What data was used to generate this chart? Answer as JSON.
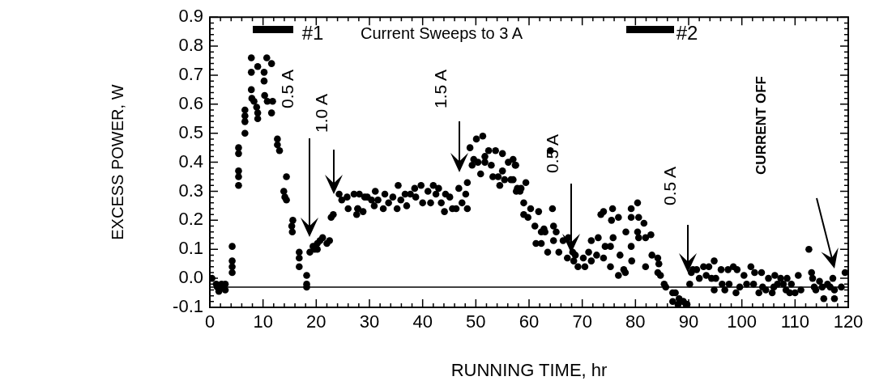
{
  "chart_data": {
    "type": "scatter",
    "xlabel": "RUNNING TIME, hr",
    "ylabel": "EXCESS POWER, W",
    "xlim": [
      0,
      120
    ],
    "xticks": [
      0,
      10,
      20,
      30,
      40,
      50,
      60,
      70,
      80,
      90,
      100,
      110,
      120
    ],
    "ylim": [
      -0.1,
      0.9
    ],
    "yticks": [
      {
        "value": -0.1,
        "label": "-0.1"
      },
      {
        "value": 0,
        "label": "0.0"
      },
      0.1,
      0.2,
      0.3,
      0.4,
      0.5,
      0.6,
      0.7,
      0.8,
      0.9
    ],
    "grid": false,
    "legend": false,
    "marker": "circle",
    "ref_lines": [
      {
        "axis": "y",
        "value": -0.03,
        "color": "#000000"
      }
    ],
    "annotations": [
      "#1",
      "Current Sweeps to 3 A",
      "#2",
      "0.5 A",
      "1.0 A",
      "1.5 A",
      "0.5 A",
      "0.5 A",
      "CURRENT OFF"
    ],
    "series": [
      {
        "color": "#000000",
        "x": [
          0.4,
          1.2,
          1.7,
          1.4,
          2.9,
          2.9,
          2.2,
          2.4,
          4.2,
          4.2,
          4.2,
          4.2,
          5.4,
          5.4,
          5.4,
          5.4,
          5.4,
          6.6,
          6.6,
          6.6,
          6.6,
          7.8,
          7.8,
          7.8,
          7.9,
          8.3,
          8.8,
          9.0,
          9.0,
          9.0,
          10.2,
          10.2,
          10.7,
          11.6,
          10.3,
          10.8,
          11.8,
          11.6,
          12.7,
          12.7,
          13.1,
          14.4,
          13.9,
          14.1,
          14.4,
          15.6,
          15.4,
          15.5,
          16.8,
          16.8,
          16.8,
          18.2,
          18.2,
          18.2,
          18.8,
          19.4,
          20.2,
          20.7,
          21.2,
          22.0,
          22.5,
          20.2,
          19.7,
          22.8,
          23.2,
          24.3,
          24.8,
          25.8,
          26.0,
          27.6,
          27.1,
          28.1,
          29.1,
          27.8,
          27.8,
          28.8,
          29.6,
          30.4,
          30.9,
          31.1,
          31.6,
          32.6,
          32.9,
          33.6,
          34.4,
          35.2,
          35.4,
          35.9,
          37.0,
          36.7,
          37.7,
          38.5,
          38.7,
          39.7,
          40.0,
          41.0,
          41.5,
          42.0,
          42.5,
          43.0,
          43.5,
          44.1,
          44.3,
          45.1,
          45.6,
          46.3,
          46.8,
          47.4,
          48.1,
          48.4,
          48.4,
          48.9,
          50.1,
          51.3,
          49.6,
          50.4,
          49.3,
          51.7,
          51.7,
          52.4,
          52.9,
          53.7,
          50.9,
          55.0,
          55.0,
          53.2,
          54.2,
          54.5,
          55.4,
          56.1,
          56.6,
          57.4,
          57.6,
          57.0,
          57.5,
          57.0,
          57.8,
          58.5,
          58.3,
          59.4,
          59.0,
          59.0,
          59.8,
          60.3,
          61.8,
          61.1,
          62.3,
          62.8,
          63.0,
          61.3,
          62.3,
          64.6,
          65.1,
          64.4,
          64.0,
          63.5,
          64.6,
          65.6,
          66.4,
          67.4,
          67.2,
          68.2,
          68.7,
          68.4,
          69.2,
          70.2,
          70.5,
          71.2,
          71.7,
          71.7,
          72.7,
          73.0,
          73.5,
          74.0,
          74.0,
          74.3,
          75.3,
          75.3,
          75.5,
          75.8,
          75.7,
          76.8,
          77.1,
          76.8,
          77.8,
          78.1,
          78.2,
          79.2,
          79.2,
          79.2,
          79.3,
          80.4,
          80.6,
          80.4,
          80.6,
          81.6,
          81.9,
          82.9,
          81.9,
          83.1,
          84.2,
          84.4,
          84.2,
          84.7,
          85.4,
          85.7,
          87.0,
          87.5,
          87.0,
          88.2,
          88.0,
          89.0,
          89.5,
          89.0,
          89.7,
          90.2,
          90.5,
          90.8,
          91.5,
          92.8,
          92.0,
          93.3,
          93.8,
          94.8,
          94.3,
          95.1,
          94.8,
          96.1,
          96.3,
          96.8,
          97.4,
          97.6,
          98.4,
          98.9,
          99.1,
          99.6,
          100.4,
          100.9,
          101.7,
          102.2,
          102.4,
          103.2,
          103.7,
          103.9,
          104.5,
          105.0,
          105.7,
          106.0,
          106.2,
          106.7,
          107.3,
          107.8,
          108.3,
          108.5,
          109.0,
          109.3,
          110.0,
          110.6,
          111.1,
          112.6,
          113.1,
          113.3,
          113.6,
          113.9,
          114.6,
          115.1,
          115.4,
          116.1,
          116.6,
          117.1,
          117.4,
          117.4,
          118.7,
          119.4
        ],
        "values": [
          0.0,
          -0.02,
          -0.045,
          -0.03,
          -0.04,
          -0.02,
          -0.02,
          -0.03,
          0.11,
          0.06,
          0.04,
          0.02,
          0.45,
          0.43,
          0.37,
          0.35,
          0.32,
          0.58,
          0.56,
          0.54,
          0.5,
          0.76,
          0.71,
          0.65,
          0.62,
          0.61,
          0.59,
          0.57,
          0.55,
          0.73,
          0.71,
          0.68,
          0.76,
          0.74,
          0.63,
          0.61,
          0.61,
          0.57,
          0.48,
          0.46,
          0.44,
          0.35,
          0.3,
          0.28,
          0.27,
          0.2,
          0.18,
          0.16,
          0.09,
          0.07,
          0.04,
          0.01,
          -0.02,
          -0.03,
          0.09,
          0.11,
          0.12,
          0.13,
          0.14,
          0.12,
          0.13,
          0.1,
          0.1,
          0.21,
          0.22,
          0.29,
          0.27,
          0.28,
          0.24,
          0.22,
          0.29,
          0.29,
          0.28,
          0.24,
          0.24,
          0.23,
          0.28,
          0.27,
          0.25,
          0.3,
          0.27,
          0.24,
          0.29,
          0.26,
          0.28,
          0.24,
          0.32,
          0.27,
          0.25,
          0.29,
          0.29,
          0.31,
          0.28,
          0.32,
          0.26,
          0.3,
          0.26,
          0.32,
          0.29,
          0.31,
          0.26,
          0.23,
          0.29,
          0.28,
          0.24,
          0.24,
          0.31,
          0.26,
          0.29,
          0.33,
          0.24,
          0.45,
          0.48,
          0.49,
          0.41,
          0.4,
          0.39,
          0.42,
          0.4,
          0.44,
          0.39,
          0.44,
          0.36,
          0.43,
          0.37,
          0.35,
          0.35,
          0.32,
          0.34,
          0.4,
          0.34,
          0.39,
          0.3,
          0.41,
          0.39,
          0.34,
          0.31,
          0.31,
          0.3,
          0.33,
          0.26,
          0.22,
          0.21,
          0.24,
          0.23,
          0.18,
          0.16,
          0.17,
          0.16,
          0.12,
          0.12,
          0.18,
          0.16,
          0.24,
          0.44,
          0.09,
          0.13,
          0.09,
          0.13,
          0.14,
          0.07,
          0.09,
          0.08,
          0.06,
          0.04,
          0.07,
          0.04,
          0.09,
          0.13,
          0.06,
          0.08,
          0.14,
          0.22,
          0.23,
          0.07,
          0.11,
          0.11,
          0.04,
          0.2,
          0.14,
          0.24,
          0.21,
          0.08,
          0.01,
          0.03,
          0.02,
          0.16,
          0.24,
          0.21,
          0.11,
          0.06,
          0.26,
          0.21,
          0.16,
          0.14,
          0.19,
          0.14,
          0.15,
          0.04,
          0.08,
          0.07,
          0.05,
          0.02,
          0.01,
          -0.02,
          -0.03,
          -0.05,
          -0.05,
          -0.08,
          -0.07,
          -0.09,
          -0.08,
          -0.09,
          -0.08,
          -0.09,
          -0.02,
          0.02,
          0.03,
          0.03,
          0.04,
          0.0,
          0.01,
          0.04,
          0.06,
          0.0,
          0.0,
          -0.04,
          0.03,
          -0.02,
          -0.04,
          0.03,
          -0.02,
          0.04,
          -0.05,
          0.03,
          -0.03,
          0.01,
          -0.02,
          0.04,
          -0.02,
          0.02,
          -0.05,
          0.02,
          -0.03,
          -0.04,
          0.0,
          -0.05,
          -0.03,
          0.01,
          -0.02,
          0.0,
          -0.02,
          -0.04,
          0.0,
          -0.05,
          -0.02,
          -0.05,
          0.01,
          -0.04,
          0.1,
          0.02,
          0.0,
          -0.03,
          -0.04,
          -0.01,
          -0.03,
          -0.07,
          -0.02,
          -0.03,
          0.0,
          -0.04,
          -0.07,
          -0.03,
          0.02
        ]
      }
    ]
  }
}
